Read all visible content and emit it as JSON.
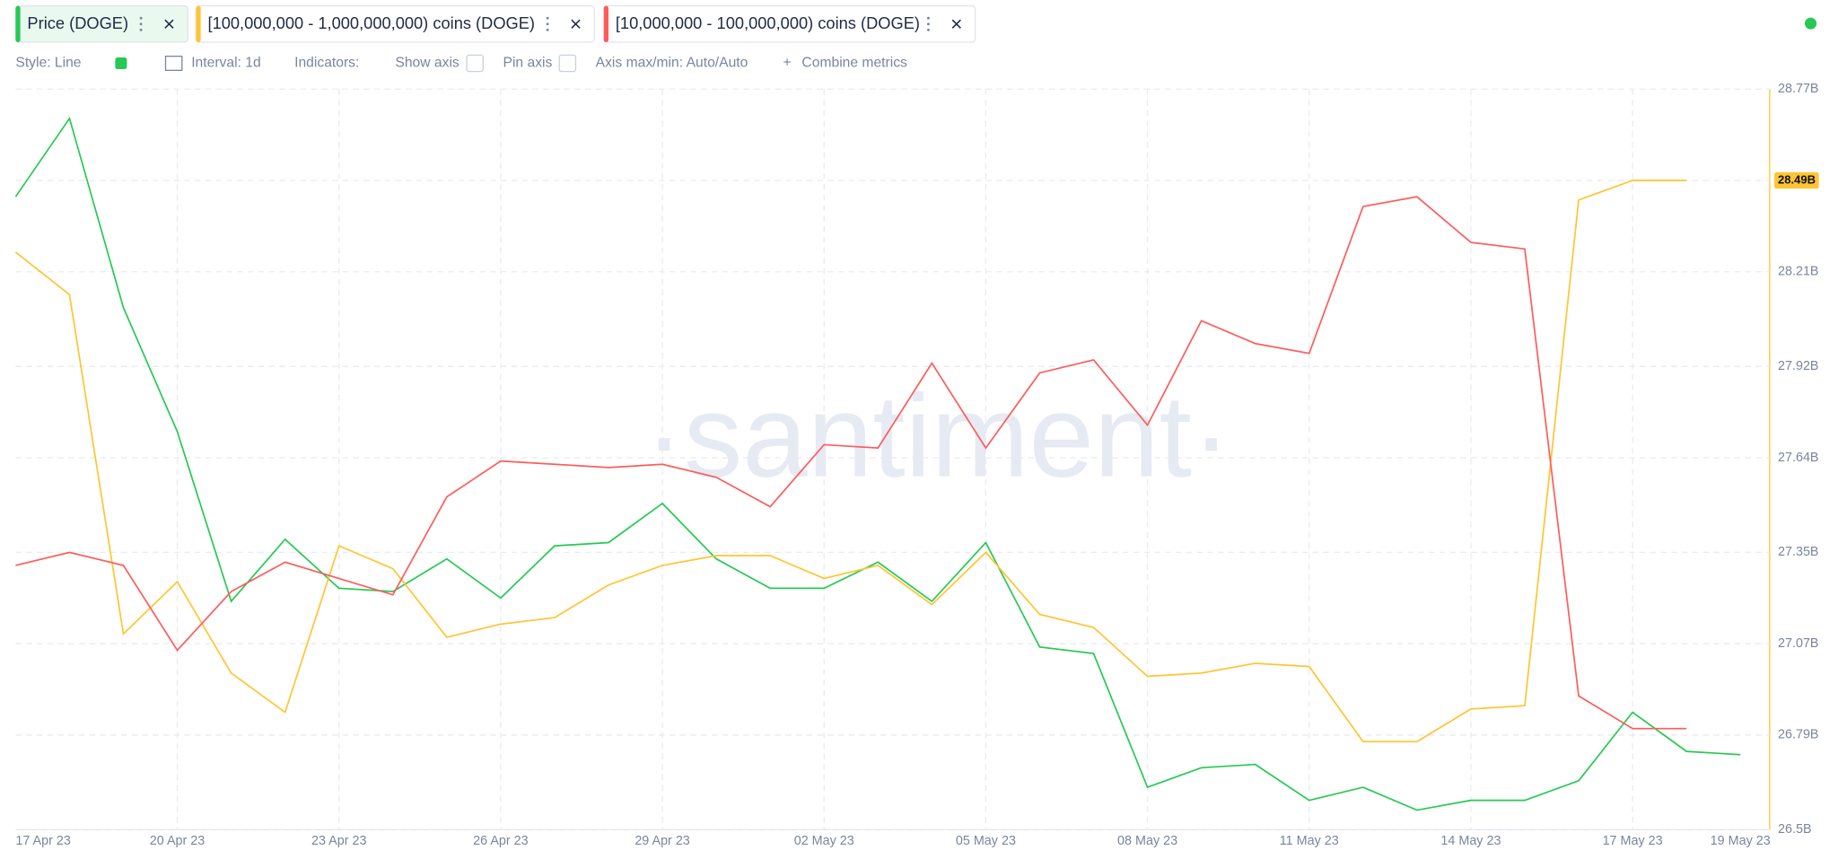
{
  "toolbar": {
    "style": "Style: Line",
    "interval": "Interval: 1d",
    "indicators": "Indicators:",
    "show_axis": "Show axis",
    "pin_axis": "Pin axis",
    "axis_minmax": "Axis max/min: Auto/Auto",
    "combine": "Combine metrics"
  },
  "chart_data": {
    "type": "line",
    "watermark": "·santiment·",
    "categories": [
      "17 Apr 23",
      null,
      null,
      "20 Apr 23",
      null,
      null,
      "23 Apr 23",
      null,
      null,
      "26 Apr 23",
      null,
      null,
      "29 Apr 23",
      null,
      null,
      "02 May 23",
      null,
      null,
      "05 May 23",
      null,
      null,
      "08 May 23",
      null,
      null,
      "11 May 23",
      null,
      null,
      "14 May 23",
      null,
      null,
      "17 May 23",
      null,
      "19 May 23"
    ],
    "ylim": [
      26.5,
      28.77
    ],
    "yticks": [
      {
        "value": 26.5,
        "label": "26.5B"
      },
      {
        "value": 26.79,
        "label": "26.79B"
      },
      {
        "value": 27.07,
        "label": "27.07B"
      },
      {
        "value": 27.35,
        "label": "27.35B"
      },
      {
        "value": 27.64,
        "label": "27.64B"
      },
      {
        "value": 27.92,
        "label": "27.92B"
      },
      {
        "value": 28.21,
        "label": "28.21B"
      },
      {
        "value": 28.49,
        "label": "28.49B"
      },
      {
        "value": 28.77,
        "label": "28.77B"
      }
    ],
    "grid": true,
    "series": [
      {
        "name": "Price (DOGE)",
        "color": "#26c953",
        "values": [
          28.44,
          28.68,
          28.1,
          27.72,
          27.2,
          27.39,
          27.24,
          27.23,
          27.33,
          27.21,
          27.37,
          27.38,
          27.5,
          27.33,
          27.24,
          27.24,
          27.32,
          27.2,
          27.38,
          27.06,
          27.04,
          26.63,
          26.69,
          26.7,
          26.59,
          26.63,
          26.56,
          26.59,
          26.59,
          26.65,
          26.86,
          26.74,
          26.73
        ]
      },
      {
        "name": "[100,000,000 - 1,000,000,000) coins (DOGE)",
        "color": "#ffc532",
        "values": [
          28.27,
          28.14,
          27.1,
          27.26,
          26.98,
          26.86,
          27.37,
          27.3,
          27.09,
          27.13,
          27.15,
          27.25,
          27.31,
          27.34,
          27.34,
          27.27,
          27.31,
          27.19,
          27.35,
          27.16,
          27.12,
          26.97,
          26.98,
          27.01,
          27.0,
          26.77,
          26.77,
          26.87,
          26.88,
          28.43,
          28.49,
          28.49,
          null
        ],
        "value_labels": [
          null,
          null,
          null,
          null,
          null,
          null,
          null,
          null,
          null,
          null,
          null,
          null,
          null,
          null,
          null,
          null,
          null,
          null,
          null,
          null,
          null,
          null,
          null,
          null,
          null,
          null,
          null,
          null,
          null,
          null,
          null,
          "28.49B",
          null
        ]
      },
      {
        "name": "[10,000,000 - 100,000,000) coins (DOGE)",
        "color": "#ff5b5b",
        "values": [
          27.31,
          27.35,
          27.31,
          27.05,
          27.23,
          27.32,
          27.27,
          27.22,
          27.52,
          27.63,
          27.62,
          27.61,
          27.62,
          27.58,
          27.49,
          27.68,
          27.67,
          27.93,
          27.67,
          27.9,
          27.94,
          27.74,
          28.06,
          27.99,
          27.96,
          28.41,
          28.44,
          28.3,
          28.28,
          26.91,
          26.81,
          26.81,
          null
        ]
      }
    ]
  }
}
